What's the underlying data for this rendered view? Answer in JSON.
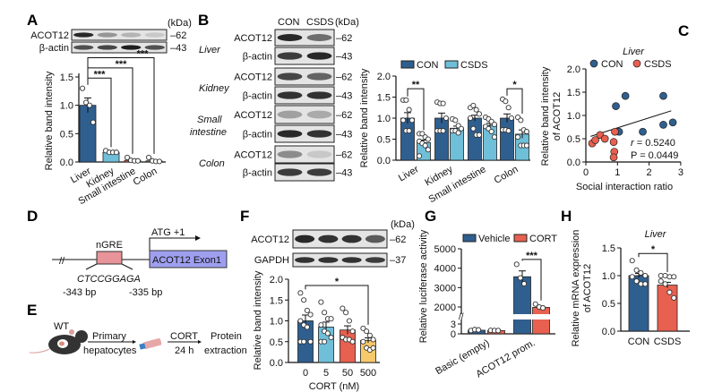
{
  "colors": {
    "con": "#2f5f8f",
    "csds": "#6fbfd9",
    "red": "#e8604f",
    "yellow": "#f6c96b",
    "brown": "#8a6d3b",
    "ngre_box": "#e8949a",
    "exon_box": "#9f9ff0"
  },
  "panels": {
    "A": {
      "label": "A",
      "kda": "(kDa)",
      "blots": [
        {
          "name": "ACOT12",
          "kda": "62",
          "band_intensity": [
            0.9,
            0.35,
            0.2,
            0.1
          ]
        },
        {
          "name": "β-actin",
          "kda": "43",
          "band_intensity": [
            0.7,
            0.75,
            0.95,
            0.7
          ]
        }
      ]
    },
    "B": {
      "label": "B",
      "kda": "(kDa)",
      "lanes": [
        "CON",
        "CSDS"
      ],
      "tissues": [
        {
          "name": "Liver",
          "blots": [
            {
              "name": "ACOT12",
              "kda": "62",
              "band_intensity": [
                0.9,
                0.55
              ]
            },
            {
              "name": "β-actin",
              "kda": "43",
              "band_intensity": [
                0.8,
                0.9
              ]
            }
          ]
        },
        {
          "name": "Kidney",
          "blots": [
            {
              "name": "ACOT12",
              "kda": "62",
              "band_intensity": [
                0.75,
                0.6
              ]
            },
            {
              "name": "β-actin",
              "kda": "43",
              "band_intensity": [
                0.85,
                0.85
              ]
            }
          ]
        },
        {
          "name_lines": [
            "Small",
            "intestine"
          ],
          "blots": [
            {
              "name": "ACOT12",
              "kda": "62",
              "band_intensity": [
                0.3,
                0.25
              ]
            },
            {
              "name": "β-actin",
              "kda": "43",
              "band_intensity": [
                0.9,
                0.85
              ]
            }
          ]
        },
        {
          "name": "Colon",
          "blots": [
            {
              "name": "ACOT12",
              "kda": "62",
              "band_intensity": [
                0.4,
                0.1
              ]
            },
            {
              "name": "β-actin",
              "kda": "43",
              "band_intensity": [
                0.8,
                0.8
              ]
            }
          ]
        }
      ]
    },
    "C": {
      "label": "C"
    },
    "D": {
      "label": "D",
      "element": "nGRE",
      "sequence": "CTCCGGAGA",
      "start": "-343 bp",
      "end": "-335 bp",
      "tss": "ATG +1",
      "exon": "ACOT12 Exon1"
    },
    "E": {
      "label": "E",
      "mouse": "WT",
      "step1": [
        "Primary",
        "hepatocytes"
      ],
      "step2": [
        "CORT",
        "24 h"
      ],
      "result": [
        "Protein",
        "extraction"
      ]
    },
    "F": {
      "label": "F",
      "kda": "(kDa)",
      "blots": [
        {
          "name": "ACOT12",
          "kda": "62",
          "band_intensity": [
            0.9,
            0.85,
            0.85,
            0.65
          ]
        },
        {
          "name": "GAPDH",
          "kda": "37",
          "band_intensity": [
            0.85,
            0.85,
            0.85,
            0.8
          ]
        }
      ]
    },
    "G": {
      "label": "G"
    },
    "H": {
      "label": "H"
    }
  },
  "chart_data": [
    {
      "id": "A",
      "type": "bar",
      "ylabel": "Relative band intensity",
      "ylim": [
        0,
        1.5
      ],
      "yticks": [
        "0.0",
        "0.5",
        "1.0",
        "1.5"
      ],
      "categories": [
        "Liver",
        "Kidney",
        "Small intestine",
        "Colon"
      ],
      "series": [
        {
          "colors": [
            "#2f5f8f",
            "#6fbfd9",
            "#e8604f",
            "#8a6d3b"
          ],
          "values": [
            1.0,
            0.17,
            0.03,
            0.02
          ],
          "sem": [
            0.13,
            0.02,
            0.02,
            0.02
          ],
          "points": [
            [
              1.3,
              1.05,
              1.0,
              0.7
            ],
            [
              0.2,
              0.17,
              0.17,
              0.17
            ],
            [
              0.08,
              0.03,
              0.02,
              0.02
            ],
            [
              0.08,
              0.02,
              0.01,
              0.01
            ]
          ]
        }
      ],
      "significance": [
        {
          "from": [
            0,
            0
          ],
          "to": [
            0,
            1
          ],
          "level": 1.48,
          "label": "***"
        },
        {
          "from": [
            0,
            0
          ],
          "to": [
            0,
            2
          ],
          "level": 1.66,
          "label": "***"
        },
        {
          "from": [
            0,
            0
          ],
          "to": [
            0,
            3
          ],
          "level": 1.84,
          "label": "***"
        }
      ]
    },
    {
      "id": "B",
      "type": "bar",
      "ylabel": "Relative band intensity",
      "ylim": [
        0,
        2.0
      ],
      "yticks": [
        "0.0",
        "0.5",
        "1.0",
        "1.5",
        "2.0"
      ],
      "categories": [
        "Liver",
        "Kidney",
        "Small intestine",
        "Colon"
      ],
      "legend": "top",
      "series": [
        {
          "name": "CON",
          "color": "#2f5f8f",
          "values": [
            1.0,
            1.0,
            1.0,
            1.0
          ],
          "sem": [
            0.13,
            0.12,
            0.07,
            0.1
          ],
          "points": [
            [
              1.43,
              1.43,
              1.2,
              0.95,
              0.95,
              0.7,
              0.7
            ],
            [
              1.38,
              1.35,
              1.35,
              1.0,
              0.7,
              0.7,
              0.7
            ],
            [
              1.25,
              1.3,
              1.2,
              1.1,
              1.0,
              0.75,
              0.6,
              0.6
            ],
            [
              1.45,
              1.4,
              1.25,
              1.0,
              0.72,
              0.72,
              0.7
            ]
          ]
        },
        {
          "name": "CSDS",
          "color": "#6fbfd9",
          "values": [
            0.42,
            0.76,
            0.83,
            0.62
          ],
          "sem": [
            0.06,
            0.05,
            0.05,
            0.1
          ],
          "points": [
            [
              0.63,
              0.63,
              0.55,
              0.5,
              0.45,
              0.4,
              0.35,
              0.25,
              0.1
            ],
            [
              0.98,
              0.95,
              0.82,
              0.75,
              0.7,
              0.7,
              0.65
            ],
            [
              1.02,
              0.98,
              0.92,
              0.85,
              0.8,
              0.75,
              0.68,
              0.55
            ],
            [
              1.02,
              0.95,
              0.72,
              0.68,
              0.55,
              0.35,
              0.35,
              0.35
            ]
          ]
        }
      ],
      "significance": [
        {
          "from": [
            0,
            0
          ],
          "to": [
            1,
            0
          ],
          "level": 1.7,
          "label": "**"
        },
        {
          "from": [
            0,
            3
          ],
          "to": [
            1,
            3
          ],
          "level": 1.7,
          "label": "*"
        }
      ]
    },
    {
      "id": "C",
      "type": "scatter",
      "title": "Liver",
      "xlabel": "Social interaction ratio",
      "ylabel": "Relative band intensity of ACOT12",
      "xlim": [
        0,
        3
      ],
      "ylim": [
        0,
        2.0
      ],
      "xticks": [
        "0",
        "1",
        "2",
        "3"
      ],
      "yticks": [
        "0.0",
        "0.5",
        "1.0",
        "1.5",
        "2.0"
      ],
      "legend": "top",
      "series": [
        {
          "name": "CON",
          "color": "#2f5f8f",
          "x": [
            0.95,
            1.25,
            2.45,
            1.05,
            1.8,
            2.45,
            2.75
          ],
          "y": [
            1.2,
            1.42,
            1.42,
            0.65,
            0.65,
            0.8,
            0.85
          ]
        },
        {
          "name": "CSDS",
          "color": "#e8604f",
          "x": [
            0.2,
            0.3,
            0.45,
            0.6,
            0.88,
            0.9,
            0.88,
            0.92
          ],
          "y": [
            0.4,
            0.47,
            0.58,
            0.5,
            0.43,
            0.22,
            0.1,
            0.65
          ]
        }
      ],
      "fit_line": {
        "x": [
          0.15,
          2.7
        ],
        "y": [
          0.55,
          1.1
        ]
      },
      "stats": {
        "r_label": "r",
        "r": "= 0.5240",
        "p": "P = 0.0449"
      }
    },
    {
      "id": "F",
      "type": "bar",
      "xlabel": "CORT (nM)",
      "ylabel": "Relative band intensity",
      "ylim": [
        0,
        2.0
      ],
      "yticks": [
        "0.0",
        "0.5",
        "1.0",
        "1.5",
        "2.0"
      ],
      "categories": [
        "0",
        "5",
        "50",
        "500"
      ],
      "series": [
        {
          "colors": [
            "#2f5f8f",
            "#6fbfd9",
            "#e8604f",
            "#f6c96b"
          ],
          "values": [
            1.0,
            0.85,
            0.78,
            0.53
          ],
          "sem": [
            0.14,
            0.12,
            0.1,
            0.06
          ],
          "points": [
            [
              1.67,
              1.5,
              1.25,
              1.15,
              1.0,
              0.9,
              0.85,
              0.5,
              0.5,
              0.5
            ],
            [
              1.45,
              1.2,
              1.05,
              1.05,
              0.9,
              0.75,
              0.7,
              0.6,
              0.5,
              0.5
            ],
            [
              1.3,
              1.2,
              1.0,
              0.75,
              0.6,
              0.55,
              0.55,
              0.5
            ],
            [
              0.82,
              0.75,
              0.65,
              0.55,
              0.5,
              0.35,
              0.3,
              0.35
            ]
          ]
        }
      ],
      "significance": [
        {
          "from": [
            0,
            0
          ],
          "to": [
            0,
            3
          ],
          "level": 1.85,
          "label": "*"
        }
      ]
    },
    {
      "id": "G",
      "type": "bar",
      "ylabel": "Relative luciferase activity",
      "axis_break": true,
      "ylim_lower": [
        0,
        3
      ],
      "ylim_upper": [
        1600,
        5000
      ],
      "yticks_lower": [
        "0",
        "3"
      ],
      "yticks_upper": [
        "2000",
        "3000",
        "4000",
        "5000"
      ],
      "categories": [
        "Basic (empty)",
        "ACOT12 prom."
      ],
      "legend": "top",
      "series": [
        {
          "name": "Vehicle",
          "color": "#2f5f8f",
          "values": [
            1.1,
            3560
          ],
          "sem": [
            0.1,
            300
          ],
          "points": [
            [
              1.0,
              1.3,
              1.2
            ],
            [
              4200,
              3500,
              3200
            ]
          ]
        },
        {
          "name": "CORT",
          "color": "#e8604f",
          "values": [
            1.0,
            1980
          ],
          "sem": [
            0.05,
            70
          ],
          "points": [
            [
              1.05,
              1.0,
              1.0
            ],
            [
              2150,
              2000,
              1950
            ]
          ]
        }
      ],
      "significance": [
        {
          "from": [
            0,
            1
          ],
          "to": [
            1,
            1
          ],
          "level": 4450,
          "label": "***"
        }
      ]
    },
    {
      "id": "H",
      "type": "bar",
      "title": "Liver",
      "ylabel": "Relative mRNA expression of ACOT12",
      "ylim": [
        0,
        1.5
      ],
      "yticks": [
        "0.0",
        "0.5",
        "1.0",
        "1.5"
      ],
      "categories": [
        "CON",
        "CSDS"
      ],
      "series": [
        {
          "colors": [
            "#2f5f8f",
            "#e8604f"
          ],
          "values": [
            1.0,
            0.83
          ],
          "sem": [
            0.04,
            0.05
          ],
          "points": [
            [
              1.27,
              1.1,
              1.05,
              1.0,
              0.98,
              0.9,
              0.85,
              0.85
            ],
            [
              1.0,
              1.0,
              0.98,
              0.98,
              0.9,
              0.85,
              0.7,
              0.6
            ]
          ]
        }
      ],
      "significance": [
        {
          "from": [
            0,
            0
          ],
          "to": [
            0,
            1
          ],
          "level": 1.4,
          "label": "*"
        }
      ]
    }
  ]
}
